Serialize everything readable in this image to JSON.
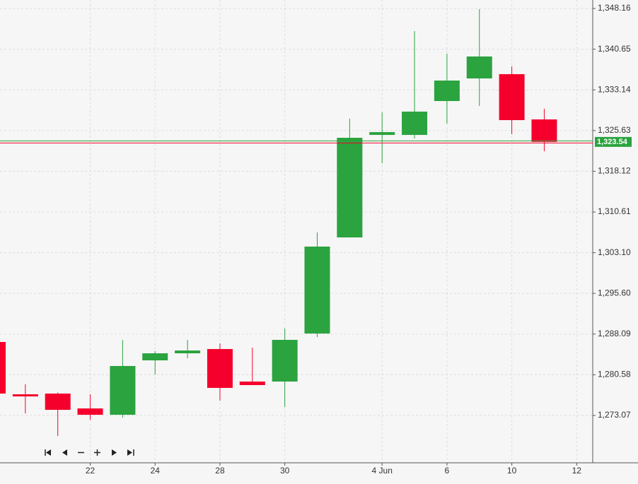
{
  "chart_data": {
    "type": "candlestick",
    "categories": [
      null,
      null,
      null,
      "22",
      null,
      "24",
      null,
      "28",
      null,
      "30",
      null,
      null,
      "4 Jun",
      null,
      "6",
      null,
      "10",
      null,
      "12"
    ],
    "open": [
      1286.63,
      1276.98,
      1277.11,
      1274.37,
      1273.2,
      1283.24,
      1284.54,
      1285.33,
      1279.33,
      1279.33,
      1288.19,
      1305.92,
      1324.83,
      1324.83,
      1331.08,
      1335.25,
      1336.04,
      1327.69,
      null
    ],
    "high": [
      1286.8,
      1278.81,
      1277.3,
      1276.98,
      1287.02,
      1284.93,
      1287.02,
      1286.37,
      1285.59,
      1289.11,
      1306.84,
      1327.82,
      1329.0,
      1343.99,
      1339.82,
      1348.03,
      1337.47,
      1329.65,
      null
    ],
    "low": [
      1277.0,
      1273.46,
      1269.29,
      1272.29,
      1272.68,
      1280.63,
      1283.63,
      1275.81,
      1278.68,
      1274.64,
      1287.54,
      1305.92,
      1319.61,
      1324.17,
      1326.91,
      1330.17,
      1324.96,
      1321.83,
      null
    ],
    "close": [
      1277.11,
      1276.59,
      1274.11,
      1273.2,
      1282.2,
      1284.54,
      1285.06,
      1278.16,
      1278.68,
      1287.02,
      1304.23,
      1324.3,
      1325.35,
      1329.13,
      1334.86,
      1339.3,
      1327.56,
      1323.54,
      null
    ],
    "up_color": "#2ba33f",
    "down_color": "#f5002c",
    "ylim": [
      1264.34,
      1349.72
    ],
    "yticks": [
      {
        "value": 1273.07,
        "label": "1,273.07"
      },
      {
        "value": 1280.58,
        "label": "1,280.58"
      },
      {
        "value": 1288.09,
        "label": "1,288.09"
      },
      {
        "value": 1295.6,
        "label": "1,295.60"
      },
      {
        "value": 1303.1,
        "label": "1,303.10"
      },
      {
        "value": 1310.61,
        "label": "1,310.61"
      },
      {
        "value": 1318.12,
        "label": "1,318.12"
      },
      {
        "value": 1325.63,
        "label": "1,325.63"
      },
      {
        "value": 1333.14,
        "label": "1,333.14"
      },
      {
        "value": 1340.65,
        "label": "1,340.65"
      },
      {
        "value": 1348.16,
        "label": "1,348.16"
      }
    ],
    "last_price": {
      "value": 1323.54,
      "label": "1,323.54"
    },
    "grid": true
  }
}
